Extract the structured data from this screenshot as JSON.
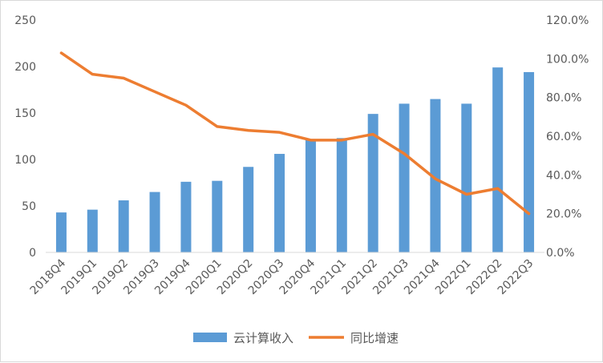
{
  "chart_data": {
    "type": "bar+line",
    "title": "",
    "categories": [
      "2018Q4",
      "2019Q1",
      "2019Q2",
      "2019Q3",
      "2019Q4",
      "2020Q1",
      "2020Q2",
      "2020Q3",
      "2020Q4",
      "2021Q1",
      "2021Q2",
      "2021Q3",
      "2021Q4",
      "2022Q1",
      "2022Q2",
      "2022Q3"
    ],
    "series": [
      {
        "name": "云计算收入",
        "type": "bar",
        "axis": "left",
        "color": "#5b9bd5",
        "values": [
          43,
          46,
          56,
          65,
          76,
          77,
          92,
          106,
          122,
          123,
          149,
          160,
          165,
          160,
          199,
          194
        ]
      },
      {
        "name": "同比增速",
        "type": "line",
        "axis": "right",
        "color": "#ed7d31",
        "values": [
          103,
          92,
          90,
          83,
          76,
          65,
          63,
          62,
          58,
          58,
          61,
          51,
          38,
          30,
          33,
          20
        ]
      }
    ],
    "y_left": {
      "min": 0,
      "max": 250,
      "ticks": [
        "0",
        "50",
        "100",
        "150",
        "200",
        "250"
      ]
    },
    "y_right": {
      "min": 0,
      "max": 120,
      "ticks": [
        "0.0%",
        "20.0%",
        "40.0%",
        "60.0%",
        "80.0%",
        "100.0%",
        "120.0%"
      ]
    },
    "legend_position": "bottom",
    "grid": false
  }
}
